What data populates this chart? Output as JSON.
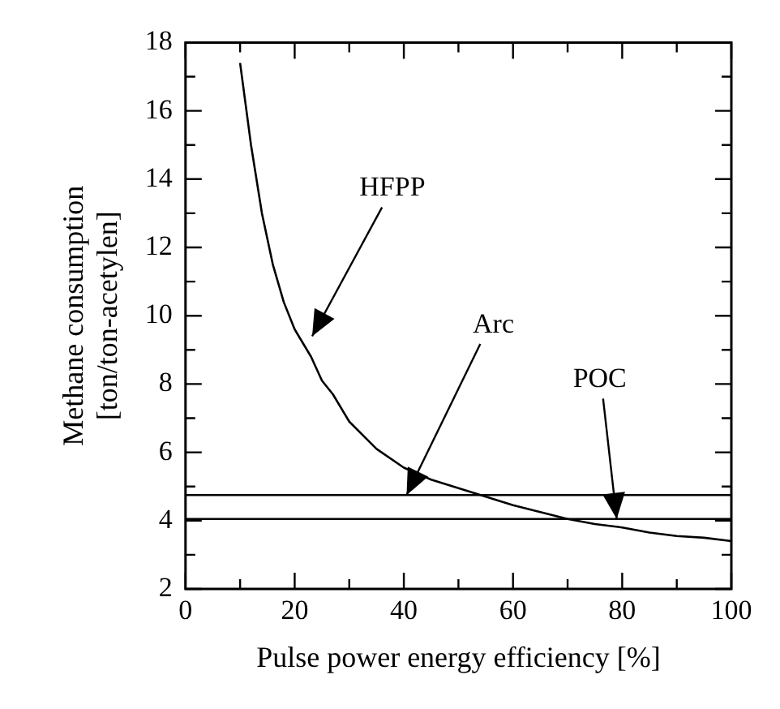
{
  "chart_data": {
    "type": "line",
    "xlabel": "Pulse power energy efficiency [%]",
    "ylabel": "Methane consumption\n[ton/ton-acetylen]",
    "x": [
      10,
      12,
      14,
      16,
      18,
      20,
      23,
      25,
      27,
      30,
      35,
      40,
      45,
      50,
      55,
      60,
      65,
      70,
      75,
      80,
      85,
      90,
      95,
      100
    ],
    "series": [
      {
        "color": "#000000",
        "values": [
          17.4,
          15.0,
          13.0,
          11.5,
          10.4,
          9.6,
          8.8,
          8.1,
          7.7,
          6.9,
          6.1,
          5.55,
          5.2,
          4.95,
          4.7,
          4.45,
          4.25,
          4.05,
          3.9,
          3.8,
          3.65,
          3.55,
          3.5,
          3.4
        ]
      }
    ],
    "ref_lines": [
      {
        "axis": "y",
        "value": 4.75,
        "color": "#000000"
      },
      {
        "axis": "y",
        "value": 4.05,
        "color": "#000000"
      }
    ],
    "annotations": [
      "HFPP",
      {
        "text": "Arc",
        "x": 40.5,
        "y": 4.75
      },
      {
        "text": "POC",
        "x": 79,
        "y": 4.05
      }
    ],
    "xlim": [
      0,
      100
    ],
    "ylim": [
      2,
      18
    ],
    "xticks": [
      0,
      {
        "value": 10,
        "label": null
      },
      20,
      {
        "value": 30,
        "label": null
      },
      40,
      {
        "value": 50,
        "label": null
      },
      60,
      {
        "value": 70,
        "label": null
      },
      80,
      {
        "value": 90,
        "label": null
      },
      100
    ],
    "yticks": [
      2,
      {
        "value": 3,
        "label": null
      },
      4,
      {
        "value": 5,
        "label": null
      },
      6,
      {
        "value": 7,
        "label": null
      },
      8,
      {
        "value": 9,
        "label": null
      },
      10,
      {
        "value": 11,
        "label": null
      },
      12,
      {
        "value": 13,
        "label": null
      },
      14,
      {
        "value": 15,
        "label": null
      },
      16,
      {
        "value": 17,
        "label": null
      },
      18
    ],
    "grid": false,
    "legend": false,
    "marker": "none",
    "line_style": "solid"
  }
}
